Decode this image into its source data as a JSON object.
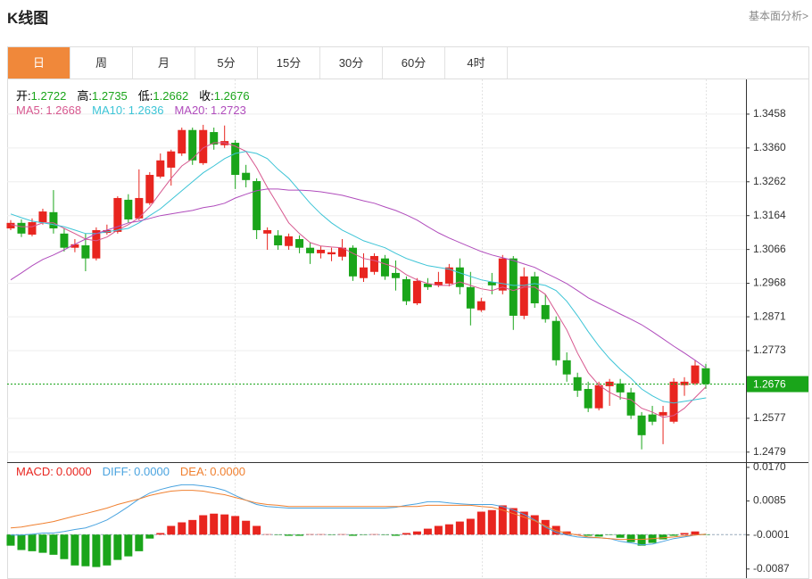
{
  "header": {
    "title": "K线图",
    "link": "基本面分析>"
  },
  "tabs": [
    "日",
    "周",
    "月",
    "5分",
    "15分",
    "30分",
    "60分",
    "4时"
  ],
  "active_tab": 0,
  "chart_data": [
    {
      "type": "candlestick",
      "info": [
        {
          "label": "开:",
          "value": "1.2722"
        },
        {
          "label": "高:",
          "value": "1.2735"
        },
        {
          "label": "低:",
          "value": "1.2662"
        },
        {
          "label": "收:",
          "value": "1.2676"
        }
      ],
      "info_color": "#1aa51a",
      "open": [
        1.3127,
        1.3143,
        1.3109,
        1.3145,
        1.3174,
        1.3112,
        1.3071,
        1.3078,
        1.304,
        1.3114,
        1.3117,
        1.321,
        1.3156,
        1.32,
        1.3277,
        1.3303,
        1.3344,
        1.3412,
        1.3316,
        1.3406,
        1.3368,
        1.3375,
        1.3288,
        1.3264,
        1.3112,
        1.3107,
        1.3076,
        1.3096,
        1.3071,
        1.3055,
        1.3052,
        1.3045,
        1.3071,
        1.2983,
        1.3001,
        1.304,
        1.2998,
        1.298,
        1.291,
        1.2967,
        1.2962,
        1.2967,
        1.3014,
        1.2957,
        1.289,
        1.2972,
        1.2947,
        1.304,
        1.2874,
        1.2988,
        1.2905,
        1.2859,
        1.2745,
        1.2696,
        1.2662,
        1.2606,
        1.267,
        1.2678,
        1.2652,
        1.2585,
        1.2588,
        1.2585,
        1.2567,
        1.2673,
        1.2678,
        1.2722
      ],
      "high": [
        1.3151,
        1.3153,
        1.3156,
        1.3184,
        1.3238,
        1.3127,
        1.3096,
        1.3112,
        1.313,
        1.3138,
        1.322,
        1.3226,
        1.3298,
        1.329,
        1.3344,
        1.3355,
        1.3419,
        1.3419,
        1.3427,
        1.3419,
        1.3425,
        1.3383,
        1.3311,
        1.3272,
        1.313,
        1.3122,
        1.3112,
        1.3107,
        1.3086,
        1.3076,
        1.3071,
        1.3096,
        1.3078,
        1.3055,
        1.3055,
        1.305,
        1.3034,
        1.2988,
        1.2983,
        1.2983,
        1.3001,
        1.3024,
        1.304,
        1.3001,
        1.2926,
        1.2998,
        1.305,
        1.3047,
        1.3014,
        1.3001,
        1.2936,
        1.2872,
        1.2768,
        1.2709,
        1.2683,
        1.2683,
        1.2691,
        1.2691,
        1.2665,
        1.2595,
        1.2613,
        1.2613,
        1.2693,
        1.2696,
        1.2745,
        1.2735
      ],
      "low": [
        1.3122,
        1.3102,
        1.3104,
        1.3138,
        1.3112,
        1.306,
        1.3058,
        1.3003,
        1.3034,
        1.3109,
        1.3112,
        1.3143,
        1.3151,
        1.3195,
        1.3272,
        1.3251,
        1.3337,
        1.3311,
        1.3311,
        1.3355,
        1.336,
        1.3241,
        1.3246,
        1.3096,
        1.3065,
        1.3065,
        1.3065,
        1.3055,
        1.3024,
        1.304,
        1.3032,
        1.3034,
        1.2975,
        1.2972,
        1.2993,
        1.2978,
        1.2947,
        1.2905,
        1.2905,
        1.2949,
        1.2957,
        1.2959,
        1.2936,
        1.2846,
        1.2885,
        1.2936,
        1.2936,
        1.2833,
        1.2864,
        1.2897,
        1.2854,
        1.273,
        1.2683,
        1.2639,
        1.2595,
        1.26,
        1.2613,
        1.2631,
        1.2575,
        1.2487,
        1.2557,
        1.2502,
        1.2562,
        1.2642,
        1.2673,
        1.2662
      ],
      "close": [
        1.3143,
        1.3112,
        1.3145,
        1.3176,
        1.3127,
        1.3071,
        1.3081,
        1.304,
        1.3122,
        1.3122,
        1.3215,
        1.3153,
        1.3215,
        1.3282,
        1.3324,
        1.335,
        1.3412,
        1.3324,
        1.3412,
        1.337,
        1.338,
        1.3282,
        1.3267,
        1.3122,
        1.3122,
        1.3078,
        1.3104,
        1.3071,
        1.3055,
        1.3065,
        1.3058,
        1.3071,
        1.2988,
        1.3014,
        1.3047,
        1.2988,
        1.2983,
        1.2916,
        1.2975,
        1.2957,
        1.2972,
        1.3014,
        1.2957,
        1.2895,
        1.2916,
        1.2962,
        1.304,
        1.2874,
        1.2988,
        1.291,
        1.2864,
        1.2745,
        1.2704,
        1.2657,
        1.2606,
        1.2673,
        1.2683,
        1.2652,
        1.2585,
        1.2528,
        1.2567,
        1.2595,
        1.2683,
        1.2683,
        1.273,
        1.2676
      ],
      "up_color": "#e8251f",
      "down_color": "#1aa51a",
      "series": [
        {
          "name": "MA5:",
          "legend_value": "1.2668",
          "color": "#d7588f",
          "values": [
            1.3138,
            1.3132,
            1.3132,
            1.3143,
            1.3143,
            1.3127,
            1.3112,
            1.3096,
            1.3091,
            1.3102,
            1.3122,
            1.3138,
            1.3158,
            1.3189,
            1.3231,
            1.3272,
            1.3308,
            1.3329,
            1.336,
            1.3375,
            1.3375,
            1.3365,
            1.335,
            1.3303,
            1.3246,
            1.3195,
            1.3143,
            1.3112,
            1.3086,
            1.3076,
            1.3073,
            1.3071,
            1.3055,
            1.304,
            1.3034,
            1.3024,
            1.3014,
            1.2993,
            1.2978,
            1.2967,
            1.2962,
            1.2962,
            1.2972,
            1.2962,
            1.2952,
            1.2947,
            1.2957,
            1.2947,
            1.2957,
            1.2957,
            1.2936,
            1.2885,
            1.2833,
            1.2766,
            1.2709,
            1.2673,
            1.2652,
            1.2637,
            1.2631,
            1.2606,
            1.2595,
            1.258,
            1.2585,
            1.2606,
            1.2637,
            1.2668
          ]
        },
        {
          "name": "MA10:",
          "legend_value": "1.2636",
          "color": "#3cc4d6",
          "values": [
            1.3169,
            1.3158,
            1.3148,
            1.3143,
            1.3138,
            1.3132,
            1.3122,
            1.3112,
            1.3112,
            1.3117,
            1.3122,
            1.3127,
            1.3143,
            1.3164,
            1.3184,
            1.321,
            1.3236,
            1.3262,
            1.3288,
            1.3308,
            1.3329,
            1.3344,
            1.335,
            1.3344,
            1.3329,
            1.3298,
            1.3272,
            1.3236,
            1.32,
            1.3169,
            1.3143,
            1.3122,
            1.3107,
            1.3091,
            1.3081,
            1.3071,
            1.3055,
            1.304,
            1.3029,
            1.3019,
            1.3014,
            1.3009,
            1.2998,
            1.2988,
            1.2978,
            1.2972,
            1.2967,
            1.2962,
            1.2962,
            1.2967,
            1.2962,
            1.2947,
            1.2916,
            1.2874,
            1.2828,
            1.2786,
            1.275,
            1.2719,
            1.2693,
            1.2662,
            1.2642,
            1.2626,
            1.2621,
            1.2626,
            1.2631,
            1.2636
          ]
        },
        {
          "name": "MA20:",
          "legend_value": "1.2723",
          "color": "#b04cbc",
          "values": [
            1.2978,
            1.2998,
            1.3019,
            1.3037,
            1.305,
            1.3065,
            1.3081,
            1.3096,
            1.3112,
            1.3122,
            1.3132,
            1.3143,
            1.3148,
            1.3156,
            1.3164,
            1.3169,
            1.3174,
            1.3179,
            1.3187,
            1.3192,
            1.32,
            1.3215,
            1.3226,
            1.3236,
            1.3241,
            1.3241,
            1.3238,
            1.3238,
            1.3236,
            1.3233,
            1.3228,
            1.3223,
            1.3215,
            1.3207,
            1.32,
            1.3189,
            1.3179,
            1.3166,
            1.3151,
            1.3132,
            1.3114,
            1.3099,
            1.3086,
            1.3073,
            1.306,
            1.305,
            1.3042,
            1.3034,
            1.3024,
            1.3014,
            1.2998,
            1.2983,
            1.2967,
            1.2947,
            1.2926,
            1.291,
            1.2895,
            1.2879,
            1.2864,
            1.2848,
            1.2828,
            1.2807,
            1.2786,
            1.2766,
            1.2745,
            1.2723
          ]
        }
      ],
      "ylim": [
        1.245,
        1.3556
      ],
      "yticks": [
        1.3458,
        {
          "value": 1.336,
          "label": "1.3360"
        },
        1.3262,
        1.3164,
        1.3066,
        1.2968,
        1.2871,
        1.2773,
        1.2577,
        1.2479
      ],
      "last_price": 1.2676,
      "last_price_color": "#1aa51a",
      "grid": true
    },
    {
      "type": "macd",
      "up_color": "#e8251f",
      "down_color": "#1aa51a",
      "series": [
        {
          "name": "MACD:",
          "legend_value": "0.0000",
          "color": "#e8251f",
          "kind": "bar",
          "values": [
            -0.0028,
            -0.0039,
            -0.0042,
            -0.0046,
            -0.0051,
            -0.0062,
            -0.0078,
            -0.008,
            -0.0082,
            -0.0078,
            -0.0064,
            -0.0055,
            -0.0042,
            -0.001,
            0.0004,
            0.0022,
            0.0031,
            0.0037,
            0.0049,
            0.0053,
            0.0051,
            0.0047,
            0.0035,
            0.0022,
            0.0001,
            -0.0001,
            -0.0003,
            -0.0003,
            0.0001,
            0.0001,
            -0.0001,
            0.0001,
            -0.0003,
            -0.0001,
            0.0001,
            -0.0001,
            -0.0003,
            0.0004,
            0.0008,
            0.0015,
            0.0022,
            0.0026,
            0.0033,
            0.004,
            0.0058,
            0.0062,
            0.0074,
            0.0067,
            0.0058,
            0.0049,
            0.0037,
            0.0022,
            0.0008,
            0.0001,
            -0.0003,
            -0.0005,
            -0.0001,
            -0.0008,
            -0.0019,
            -0.0028,
            -0.0021,
            -0.0012,
            -0.0003,
            0.0004,
            0.0008,
            -0.0001
          ]
        },
        {
          "name": "DIFF:",
          "legend_value": "0.0000",
          "color": "#4aa3df",
          "kind": "line",
          "values": [
            -0.0001,
            -0.0001,
            0.0001,
            0.0004,
            0.0004,
            0.0008,
            0.0013,
            0.0017,
            0.0026,
            0.0037,
            0.0053,
            0.0071,
            0.009,
            0.0105,
            0.0114,
            0.0121,
            0.0126,
            0.0126,
            0.0123,
            0.0119,
            0.0112,
            0.0099,
            0.0087,
            0.0076,
            0.0071,
            0.0069,
            0.0067,
            0.0067,
            0.0067,
            0.0067,
            0.0067,
            0.0067,
            0.0067,
            0.0067,
            0.0067,
            0.0067,
            0.0069,
            0.0074,
            0.0078,
            0.0083,
            0.0083,
            0.008,
            0.0078,
            0.0076,
            0.0076,
            0.0076,
            0.0071,
            0.0062,
            0.0051,
            0.0037,
            0.0019,
            0.0006,
            -0.0001,
            -0.0006,
            -0.0008,
            -0.0008,
            -0.001,
            -0.0017,
            -0.0021,
            -0.0026,
            -0.0024,
            -0.0017,
            -0.001,
            -0.0006,
            -0.0001,
            0.0001
          ]
        },
        {
          "name": "DEA:",
          "legend_value": "0.0000",
          "color": "#f08030",
          "kind": "line",
          "values": [
            0.0017,
            0.0019,
            0.0024,
            0.0028,
            0.0033,
            0.004,
            0.0047,
            0.0053,
            0.006,
            0.0067,
            0.0076,
            0.0083,
            0.009,
            0.0099,
            0.0105,
            0.011,
            0.0112,
            0.0112,
            0.011,
            0.0105,
            0.0101,
            0.0094,
            0.0087,
            0.008,
            0.0076,
            0.0074,
            0.0071,
            0.0071,
            0.0071,
            0.0071,
            0.0071,
            0.0071,
            0.0071,
            0.0071,
            0.0071,
            0.0071,
            0.0071,
            0.0071,
            0.0071,
            0.0074,
            0.0074,
            0.0074,
            0.0074,
            0.0074,
            0.0071,
            0.0069,
            0.0062,
            0.0053,
            0.0044,
            0.0035,
            0.0022,
            0.001,
            0.0004,
            -0.0001,
            -0.0006,
            -0.0008,
            -0.001,
            -0.0012,
            -0.0012,
            -0.0012,
            -0.001,
            -0.0008,
            -0.0006,
            -0.0003,
            -0.0001,
            0.0001
          ]
        }
      ],
      "ylim": [
        -0.011,
        0.0181
      ],
      "yticks": [
        {
          "value": 0.017,
          "label": "0.0170"
        },
        0.0085,
        -0.0001,
        -0.0087
      ]
    }
  ]
}
